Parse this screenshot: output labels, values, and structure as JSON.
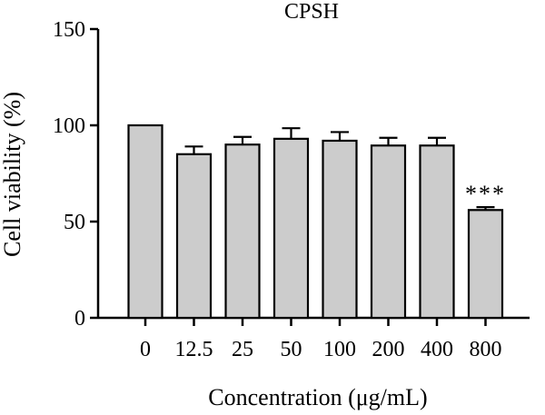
{
  "chart_data": {
    "type": "bar",
    "title": "CPSH",
    "xlabel": "Concentration (μg/mL)",
    "ylabel": "Cell viability (%)",
    "categories": [
      "0",
      "12.5",
      "25",
      "50",
      "100",
      "200",
      "400",
      "800"
    ],
    "values": [
      100,
      85,
      90,
      93,
      92,
      89.5,
      89.5,
      56
    ],
    "errors": [
      0,
      4,
      4,
      5.5,
      4.5,
      4,
      4,
      1.5
    ],
    "annotations": [
      {
        "category": "800",
        "text": "***"
      }
    ],
    "ylim": [
      0,
      150
    ],
    "yticks": [
      "0",
      "50",
      "100",
      "150"
    ],
    "grid": false,
    "bar_color": "#cccccc",
    "edge_color": "#000000"
  }
}
